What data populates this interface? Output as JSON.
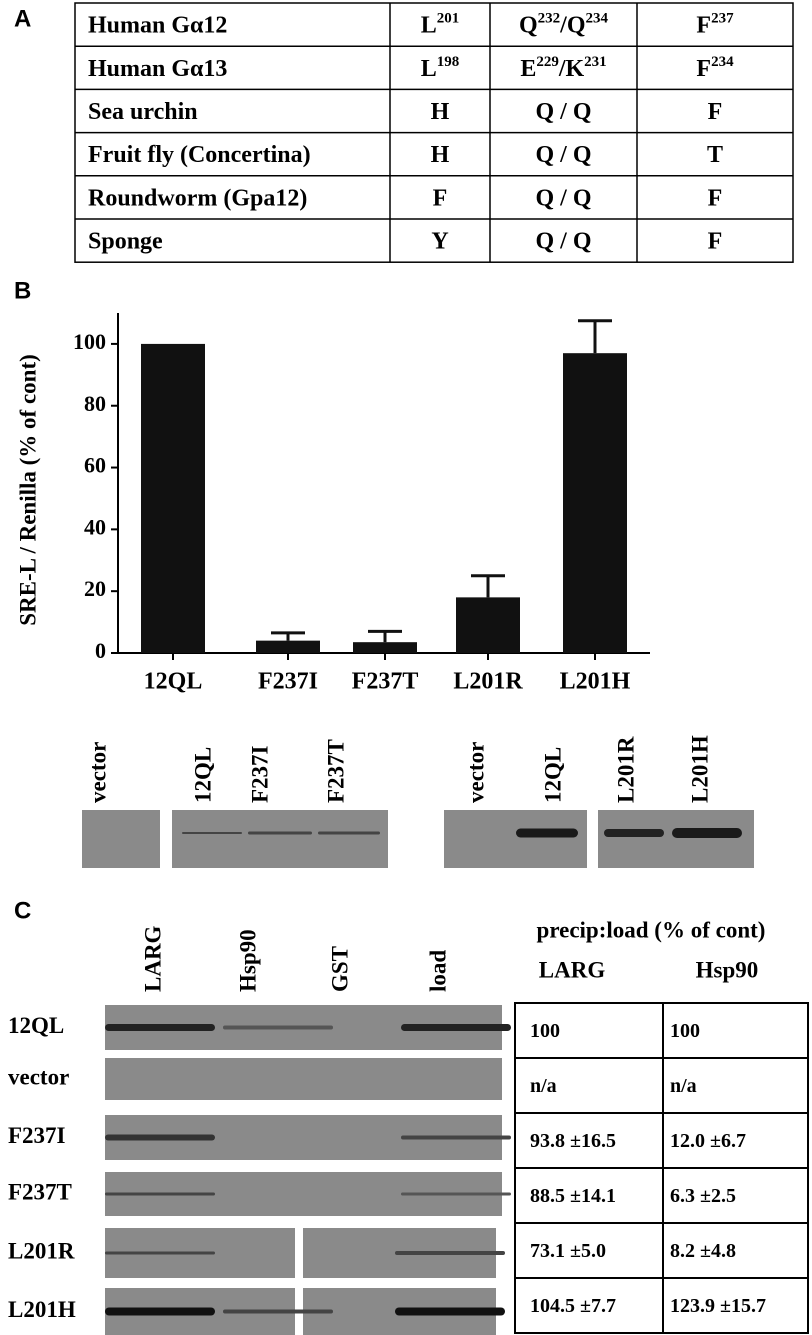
{
  "panel_a": {
    "label": "A",
    "rows": [
      [
        [
          {
            "base": "Human Gα12"
          }
        ],
        [
          {
            "base": "L",
            "sup": "201"
          }
        ],
        [
          {
            "base": "Q",
            "sup": "232"
          },
          {
            "base": "/Q",
            "sup": "234"
          }
        ],
        [
          {
            "base": "F",
            "sup": "237"
          }
        ]
      ],
      [
        [
          {
            "base": "Human Gα13"
          }
        ],
        [
          {
            "base": "L",
            "sup": "198"
          }
        ],
        [
          {
            "base": "E",
            "sup": "229"
          },
          {
            "base": "/K",
            "sup": "231"
          }
        ],
        [
          {
            "base": "F",
            "sup": "234"
          }
        ]
      ],
      [
        [
          {
            "base": "Sea urchin"
          }
        ],
        [
          {
            "base": "H"
          }
        ],
        [
          {
            "base": "Q / Q"
          }
        ],
        [
          {
            "base": "F"
          }
        ]
      ],
      [
        [
          {
            "base": "Fruit fly (Concertina)"
          }
        ],
        [
          {
            "base": "H"
          }
        ],
        [
          {
            "base": "Q / Q"
          }
        ],
        [
          {
            "base": "T"
          }
        ]
      ],
      [
        [
          {
            "base": "Roundworm (Gpa12)"
          }
        ],
        [
          {
            "base": "F"
          }
        ],
        [
          {
            "base": "Q / Q"
          }
        ],
        [
          {
            "base": "F"
          }
        ]
      ],
      [
        [
          {
            "base": "Sponge"
          }
        ],
        [
          {
            "base": "Y"
          }
        ],
        [
          {
            "base": "Q / Q"
          }
        ],
        [
          {
            "base": "F"
          }
        ]
      ]
    ]
  },
  "chart_data": {
    "type": "bar",
    "panel_label": "B",
    "y_label": "SRE-L / Renilla (% of cont)",
    "categories": [
      "12QL",
      "F237I",
      "F237T",
      "L201R",
      "L201H"
    ],
    "values": [
      100,
      4,
      3.5,
      18,
      97
    ],
    "errors": [
      null,
      2.5,
      3.5,
      7,
      10.5
    ],
    "color": "#111111",
    "ylim": [
      0,
      110
    ],
    "yticks": [
      0,
      20,
      40,
      60,
      80,
      100
    ]
  },
  "blot_b": {
    "left_lanes": [
      "vector",
      "12QL",
      "F237I",
      "F237T"
    ],
    "right_lanes": [
      "vector",
      "12QL",
      "L201R",
      "L201H"
    ]
  },
  "panel_c": {
    "label": "C",
    "lanes": [
      "LARG",
      "Hsp90",
      "GST",
      "load"
    ],
    "heading": "precip:load (% of cont)",
    "columns": [
      "LARG",
      "Hsp90"
    ],
    "rows": [
      {
        "label": "12QL",
        "values": [
          "100",
          "100"
        ]
      },
      {
        "label": "vector",
        "values": [
          "n/a",
          "n/a"
        ]
      },
      {
        "label": "F237I",
        "values": [
          "93.8 ±16.5",
          "12.0 ±6.7"
        ]
      },
      {
        "label": "F237T",
        "values": [
          "88.5 ±14.1",
          "6.3 ±2.5"
        ]
      },
      {
        "label": "L201R",
        "values": [
          "73.1 ±5.0",
          "8.2 ±4.8"
        ]
      },
      {
        "label": "L201H",
        "values": [
          "104.5 ±7.7",
          "123.9 ±15.7"
        ]
      }
    ]
  }
}
